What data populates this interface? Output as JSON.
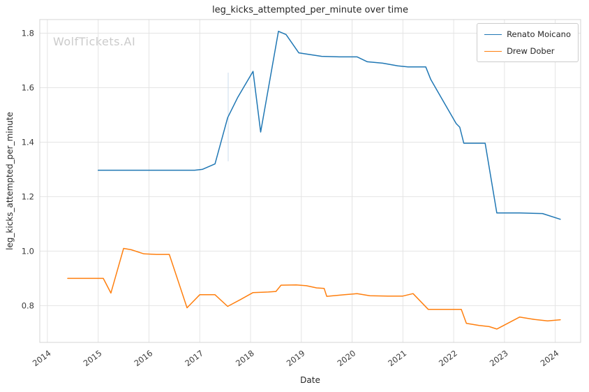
{
  "watermark": "WolfTickets.AI",
  "chart_data": {
    "type": "line",
    "title": "leg_kicks_attempted_per_minute over time",
    "xlabel": "Date",
    "ylabel": "leg_kicks_attempted_per_minute",
    "xlim": [
      2013.85,
      2024.5
    ],
    "ylim": [
      0.665,
      1.85
    ],
    "x_ticks": [
      2014,
      2015,
      2016,
      2017,
      2018,
      2019,
      2020,
      2021,
      2022,
      2023,
      2024
    ],
    "y_ticks": [
      0.8,
      1.0,
      1.2,
      1.4,
      1.6,
      1.8
    ],
    "y_tick_labels": [
      "0.8",
      "1.0",
      "1.2",
      "1.4",
      "1.6",
      "1.8"
    ],
    "grid": true,
    "grid_color": "#e4e4e4",
    "spine_color": "#d4d4d4",
    "legend_position": "upper right",
    "annotation_line": {
      "x": 2017.56,
      "y1": 1.33,
      "y2": 1.655,
      "color": "#ccdcec"
    },
    "series": [
      {
        "name": "Renato Moicano",
        "color": "#1f77b4",
        "points": [
          [
            2015.0,
            1.297
          ],
          [
            2016.0,
            1.297
          ],
          [
            2016.9,
            1.297
          ],
          [
            2017.05,
            1.3
          ],
          [
            2017.3,
            1.32
          ],
          [
            2017.55,
            1.49
          ],
          [
            2017.75,
            1.565
          ],
          [
            2018.05,
            1.66
          ],
          [
            2018.2,
            1.437
          ],
          [
            2018.55,
            1.807
          ],
          [
            2018.7,
            1.795
          ],
          [
            2018.95,
            1.728
          ],
          [
            2019.15,
            1.722
          ],
          [
            2019.4,
            1.715
          ],
          [
            2019.75,
            1.713
          ],
          [
            2020.1,
            1.713
          ],
          [
            2020.3,
            1.695
          ],
          [
            2020.6,
            1.69
          ],
          [
            2020.9,
            1.68
          ],
          [
            2021.1,
            1.676
          ],
          [
            2021.45,
            1.676
          ],
          [
            2021.55,
            1.63
          ],
          [
            2022.05,
            1.468
          ],
          [
            2022.12,
            1.455
          ],
          [
            2022.2,
            1.396
          ],
          [
            2022.62,
            1.396
          ],
          [
            2022.85,
            1.14
          ],
          [
            2023.3,
            1.14
          ],
          [
            2023.75,
            1.138
          ],
          [
            2024.1,
            1.117
          ]
        ]
      },
      {
        "name": "Drew Dober",
        "color": "#ff7f0e",
        "points": [
          [
            2014.4,
            0.9
          ],
          [
            2014.85,
            0.9
          ],
          [
            2015.1,
            0.9
          ],
          [
            2015.25,
            0.846
          ],
          [
            2015.5,
            1.01
          ],
          [
            2015.65,
            1.005
          ],
          [
            2015.9,
            0.99
          ],
          [
            2016.15,
            0.988
          ],
          [
            2016.4,
            0.988
          ],
          [
            2016.75,
            0.792
          ],
          [
            2017.0,
            0.84
          ],
          [
            2017.3,
            0.84
          ],
          [
            2017.55,
            0.797
          ],
          [
            2017.8,
            0.822
          ],
          [
            2018.05,
            0.848
          ],
          [
            2018.35,
            0.85
          ],
          [
            2018.5,
            0.852
          ],
          [
            2018.6,
            0.875
          ],
          [
            2018.9,
            0.876
          ],
          [
            2019.1,
            0.873
          ],
          [
            2019.3,
            0.865
          ],
          [
            2019.45,
            0.863
          ],
          [
            2019.5,
            0.834
          ],
          [
            2019.85,
            0.84
          ],
          [
            2020.1,
            0.844
          ],
          [
            2020.35,
            0.836
          ],
          [
            2020.7,
            0.835
          ],
          [
            2021.0,
            0.835
          ],
          [
            2021.2,
            0.844
          ],
          [
            2021.5,
            0.786
          ],
          [
            2021.8,
            0.786
          ],
          [
            2022.15,
            0.786
          ],
          [
            2022.25,
            0.735
          ],
          [
            2022.5,
            0.727
          ],
          [
            2022.7,
            0.723
          ],
          [
            2022.85,
            0.714
          ],
          [
            2023.3,
            0.758
          ],
          [
            2023.6,
            0.749
          ],
          [
            2023.85,
            0.744
          ],
          [
            2024.1,
            0.748
          ]
        ]
      }
    ]
  }
}
